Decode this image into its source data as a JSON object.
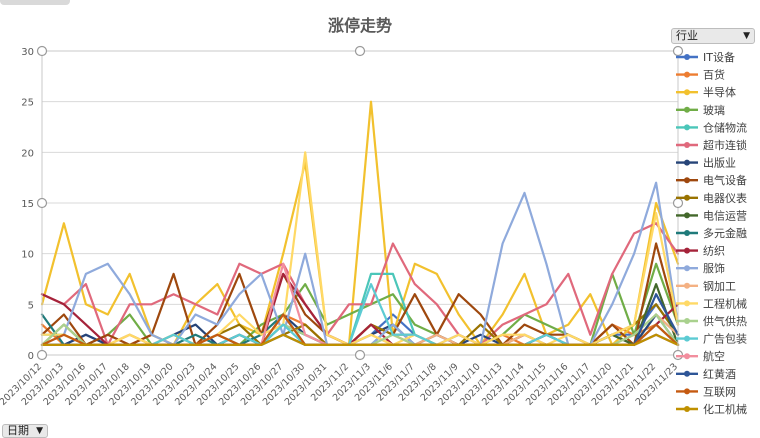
{
  "chart_data": {
    "type": "line",
    "title": "涨停走势",
    "xlabel": "",
    "ylabel": "",
    "ylim": [
      0,
      30
    ],
    "yticks": [
      0,
      5,
      10,
      15,
      20,
      25,
      30
    ],
    "grid": true,
    "legend_position": "right",
    "categories": [
      "2023/10/12",
      "2023/10/13",
      "2023/10/16",
      "2023/10/17",
      "2023/10/18",
      "2023/10/19",
      "2023/10/20",
      "2023/10/23",
      "2023/10/24",
      "2023/10/25",
      "2023/10/26",
      "2023/10/27",
      "2023/10/30",
      "2023/10/31",
      "2023/11/2",
      "2023/11/3",
      "2023/11/6",
      "2023/11/7",
      "2023/11/8",
      "2023/11/9",
      "2023/11/10",
      "2023/11/13",
      "2023/11/14",
      "2023/11/15",
      "2023/11/16",
      "2023/11/17",
      "2023/11/20",
      "2023/11/21",
      "2023/11/22",
      "2023/11/23"
    ],
    "series": [
      {
        "name": "IT设备",
        "color": "#4472c4",
        "values": [
          1,
          1,
          2,
          1,
          1,
          1,
          1,
          1,
          2,
          1,
          1,
          3,
          2,
          1,
          1,
          2,
          4,
          2,
          1,
          2,
          1,
          1,
          2,
          1,
          1,
          1,
          2,
          2,
          5,
          2
        ]
      },
      {
        "name": "百货",
        "color": "#ed7d31",
        "values": [
          3,
          1,
          1,
          1,
          1,
          2,
          1,
          1,
          1,
          2,
          1,
          4,
          3,
          1,
          1,
          3,
          2,
          1,
          2,
          1,
          1,
          2,
          1,
          2,
          1,
          1,
          3,
          2,
          3,
          1
        ]
      },
      {
        "name": "半导体",
        "color": "#f2c12e",
        "values": [
          5,
          13,
          5,
          4,
          8,
          2,
          1,
          5,
          7,
          3,
          2,
          10,
          19,
          2,
          1,
          25,
          2,
          9,
          8,
          4,
          1,
          4,
          8,
          2,
          3,
          6,
          1,
          3,
          15,
          9
        ]
      },
      {
        "name": "玻璃",
        "color": "#70ad47",
        "values": [
          1,
          1,
          1,
          2,
          4,
          1,
          1,
          1,
          2,
          1,
          3,
          4,
          7,
          3,
          4,
          5,
          6,
          3,
          2,
          1,
          1,
          2,
          4,
          3,
          2,
          1,
          8,
          2,
          9,
          3
        ]
      },
      {
        "name": "仓储物流",
        "color": "#4bc6b9",
        "values": [
          2,
          2,
          1,
          1,
          1,
          1,
          1,
          1,
          1,
          1,
          1,
          2,
          1,
          1,
          1,
          8,
          8,
          2,
          1,
          1,
          1,
          1,
          1,
          1,
          1,
          1,
          1,
          1,
          4,
          2
        ]
      },
      {
        "name": "超市连锁",
        "color": "#e0697c",
        "values": [
          6,
          5,
          7,
          1,
          5,
          5,
          6,
          5,
          4,
          9,
          8,
          9,
          5,
          2,
          5,
          5,
          11,
          7,
          5,
          2,
          1,
          3,
          4,
          5,
          8,
          2,
          8,
          12,
          13,
          10
        ]
      },
      {
        "name": "出版业",
        "color": "#264478",
        "values": [
          1,
          1,
          2,
          1,
          1,
          1,
          2,
          3,
          1,
          2,
          1,
          4,
          2,
          1,
          1,
          2,
          3,
          1,
          2,
          1,
          2,
          1,
          1,
          2,
          1,
          1,
          2,
          1,
          4,
          1
        ]
      },
      {
        "name": "电气设备",
        "color": "#9e480e",
        "values": [
          2,
          4,
          1,
          2,
          1,
          2,
          8,
          1,
          3,
          8,
          2,
          8,
          4,
          2,
          1,
          3,
          2,
          6,
          2,
          6,
          4,
          1,
          3,
          2,
          2,
          1,
          3,
          1,
          11,
          3
        ]
      },
      {
        "name": "电器仪表",
        "color": "#997300",
        "values": [
          1,
          3,
          1,
          1,
          2,
          1,
          2,
          1,
          2,
          3,
          1,
          2,
          3,
          1,
          1,
          3,
          2,
          2,
          1,
          1,
          3,
          1,
          2,
          1,
          1,
          1,
          2,
          3,
          5,
          2
        ]
      },
      {
        "name": "电信运营",
        "color": "#43682b",
        "values": [
          1,
          1,
          1,
          1,
          1,
          1,
          1,
          1,
          1,
          1,
          1,
          3,
          2,
          1,
          1,
          1,
          1,
          1,
          1,
          1,
          1,
          1,
          1,
          1,
          1,
          1,
          2,
          1,
          7,
          1
        ]
      },
      {
        "name": "多元金融",
        "color": "#1f7a7a",
        "values": [
          4,
          1,
          1,
          1,
          1,
          1,
          1,
          2,
          1,
          1,
          2,
          4,
          1,
          1,
          1,
          1,
          3,
          1,
          1,
          1,
          1,
          1,
          1,
          1,
          1,
          1,
          1,
          1,
          2,
          1
        ]
      },
      {
        "name": "纺织",
        "color": "#a5233a",
        "values": [
          6,
          5,
          3,
          1,
          1,
          1,
          1,
          1,
          1,
          1,
          1,
          8,
          5,
          2,
          1,
          3,
          1,
          1,
          1,
          1,
          1,
          1,
          1,
          1,
          1,
          1,
          1,
          1,
          3,
          5
        ]
      },
      {
        "name": "服饰",
        "color": "#8faadc",
        "values": [
          1,
          2,
          8,
          9,
          6,
          2,
          1,
          4,
          3,
          6,
          8,
          2,
          10,
          1,
          1,
          1,
          3,
          1,
          1,
          1,
          1,
          11,
          16,
          9,
          1,
          1,
          5,
          10,
          17,
          3
        ]
      },
      {
        "name": "钢加工",
        "color": "#f4b183",
        "values": [
          1,
          1,
          1,
          1,
          2,
          1,
          1,
          1,
          1,
          1,
          1,
          2,
          1,
          1,
          1,
          2,
          1,
          1,
          2,
          1,
          1,
          1,
          2,
          1,
          1,
          1,
          1,
          2,
          4,
          2
        ]
      },
      {
        "name": "工程机械",
        "color": "#ffd966",
        "values": [
          2,
          2,
          1,
          1,
          2,
          1,
          2,
          1,
          2,
          4,
          2,
          3,
          20,
          2,
          1,
          2,
          1,
          2,
          1,
          2,
          1,
          2,
          2,
          1,
          2,
          1,
          2,
          3,
          14,
          3
        ]
      },
      {
        "name": "供气供热",
        "color": "#a9d18e",
        "values": [
          1,
          3,
          1,
          1,
          1,
          1,
          1,
          1,
          1,
          1,
          1,
          3,
          2,
          1,
          1,
          1,
          2,
          1,
          1,
          1,
          1,
          1,
          1,
          1,
          1,
          1,
          1,
          2,
          4,
          1
        ]
      },
      {
        "name": "广告包装",
        "color": "#5ccbd3",
        "values": [
          1,
          1,
          1,
          1,
          1,
          1,
          2,
          1,
          1,
          2,
          1,
          3,
          1,
          1,
          1,
          7,
          2,
          2,
          1,
          1,
          1,
          1,
          1,
          2,
          1,
          1,
          1,
          1,
          3,
          1
        ]
      },
      {
        "name": "航空",
        "color": "#f28e9e",
        "values": [
          1,
          1,
          1,
          1,
          1,
          1,
          1,
          1,
          1,
          1,
          1,
          9,
          2,
          1,
          1,
          1,
          1,
          1,
          1,
          1,
          1,
          1,
          1,
          1,
          1,
          1,
          1,
          1,
          2,
          1
        ]
      },
      {
        "name": "红黄酒",
        "color": "#2e5597",
        "values": [
          1,
          1,
          1,
          1,
          1,
          1,
          1,
          1,
          1,
          1,
          1,
          2,
          1,
          1,
          1,
          1,
          1,
          1,
          1,
          1,
          1,
          1,
          1,
          1,
          1,
          1,
          1,
          1,
          6,
          2
        ]
      },
      {
        "name": "互联网",
        "color": "#c55a11",
        "values": [
          1,
          2,
          1,
          1,
          1,
          1,
          1,
          1,
          2,
          1,
          1,
          4,
          1,
          1,
          1,
          1,
          1,
          1,
          1,
          1,
          1,
          1,
          1,
          1,
          1,
          1,
          1,
          1,
          3,
          1
        ]
      },
      {
        "name": "化工机械",
        "color": "#bf9000",
        "values": [
          1,
          1,
          1,
          1,
          1,
          1,
          1,
          1,
          1,
          1,
          1,
          2,
          1,
          1,
          1,
          1,
          1,
          1,
          1,
          1,
          1,
          1,
          1,
          1,
          1,
          1,
          1,
          1,
          2,
          1
        ]
      }
    ]
  },
  "filters": {
    "industry_label": "行业",
    "date_label": "日期",
    "dropdown_glyph": "▼"
  }
}
